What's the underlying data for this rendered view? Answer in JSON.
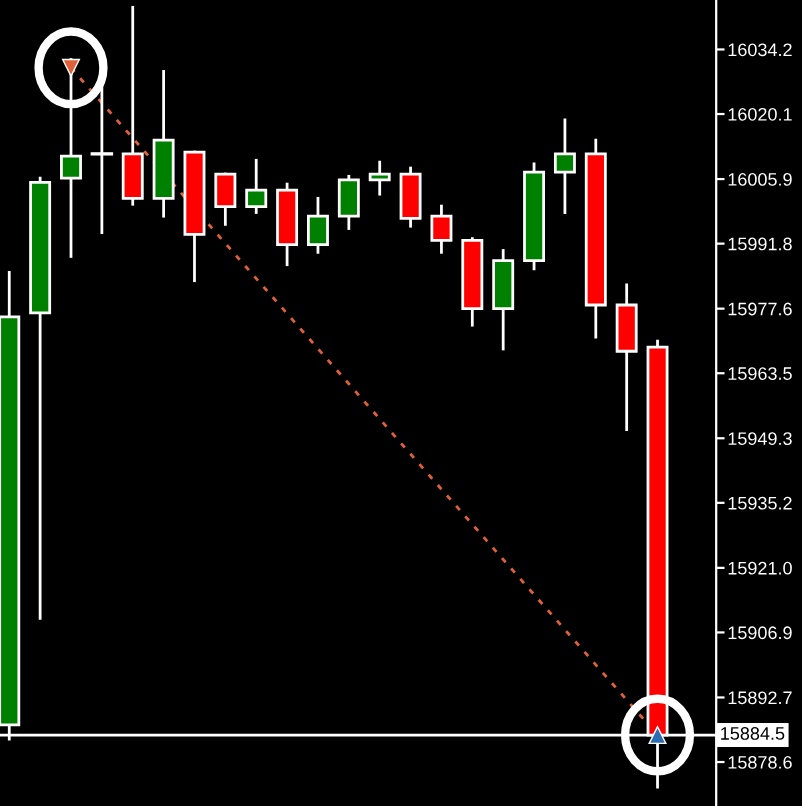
{
  "chart_data": {
    "type": "candlestick",
    "categories": [
      null,
      null,
      null,
      null,
      null,
      null,
      null,
      null,
      null,
      null,
      null,
      null,
      null,
      null,
      null,
      null,
      null,
      null,
      null,
      null,
      null,
      null
    ],
    "ohlc": [
      [
        15886.7,
        15985.5,
        15883.6,
        15975.8
      ],
      [
        15976.7,
        16006.1,
        15910.0,
        16005.2
      ],
      [
        16006.1,
        16032.0,
        15989.0,
        16010.9
      ],
      [
        16011.4,
        16030.7,
        15994.2,
        16011.4
      ],
      [
        16011.4,
        16043.4,
        16000.4,
        16001.7
      ],
      [
        16001.7,
        16029.4,
        15997.8,
        16014.4
      ],
      [
        16011.8,
        16011.8,
        15983.7,
        15993.8
      ],
      [
        16007.0,
        16007.0,
        15996.0,
        15999.9
      ],
      [
        15999.9,
        16010.0,
        15998.6,
        16003.5
      ],
      [
        16003.5,
        16004.8,
        15987.2,
        15991.6
      ],
      [
        15991.6,
        16001.7,
        15989.9,
        15997.8
      ],
      [
        15997.8,
        16006.5,
        15995.1,
        16005.7
      ],
      [
        16005.7,
        16009.6,
        16002.6,
        16007.0
      ],
      [
        16007.0,
        16008.3,
        15995.6,
        15997.3
      ],
      [
        15997.8,
        16000.0,
        15989.9,
        15992.5
      ],
      [
        15992.5,
        15992.9,
        15974.0,
        15977.6
      ],
      [
        15977.6,
        15990.3,
        15968.8,
        15988.1
      ],
      [
        15988.1,
        16009.2,
        15986.3,
        16007.4
      ],
      [
        16007.4,
        16018.8,
        15998.6,
        16011.4
      ],
      [
        16011.4,
        16014.4,
        15971.4,
        15978.4
      ],
      [
        15978.4,
        15982.8,
        15951.2,
        15968.3
      ],
      [
        15969.2,
        15970.5,
        15873.1,
        15884.5
      ]
    ],
    "series": [
      {
        "type": "line",
        "color": "#e0603a",
        "line_style": "dashed",
        "marker": "triangle",
        "values": [
          null,
          null,
          16030.2,
          null,
          null,
          null,
          null,
          null,
          null,
          null,
          null,
          null,
          null,
          null,
          null,
          null,
          null,
          null,
          null,
          null,
          null,
          15884.5
        ]
      }
    ],
    "ylim": [
      15869,
      16045
    ],
    "yticks": [
      16034.2,
      16020.1,
      16005.9,
      15991.8,
      15977.6,
      15963.5,
      15949.3,
      15935.2,
      {
        "value": 15921.0,
        "label": "15921.0"
      },
      15906.9,
      15892.7,
      15878.6
    ],
    "ref_lines": [
      {
        "axis": "y",
        "value": 15884.5,
        "label": "15884.5",
        "color": "#ffffff"
      }
    ],
    "tick_labels": "y",
    "grid": false
  }
}
